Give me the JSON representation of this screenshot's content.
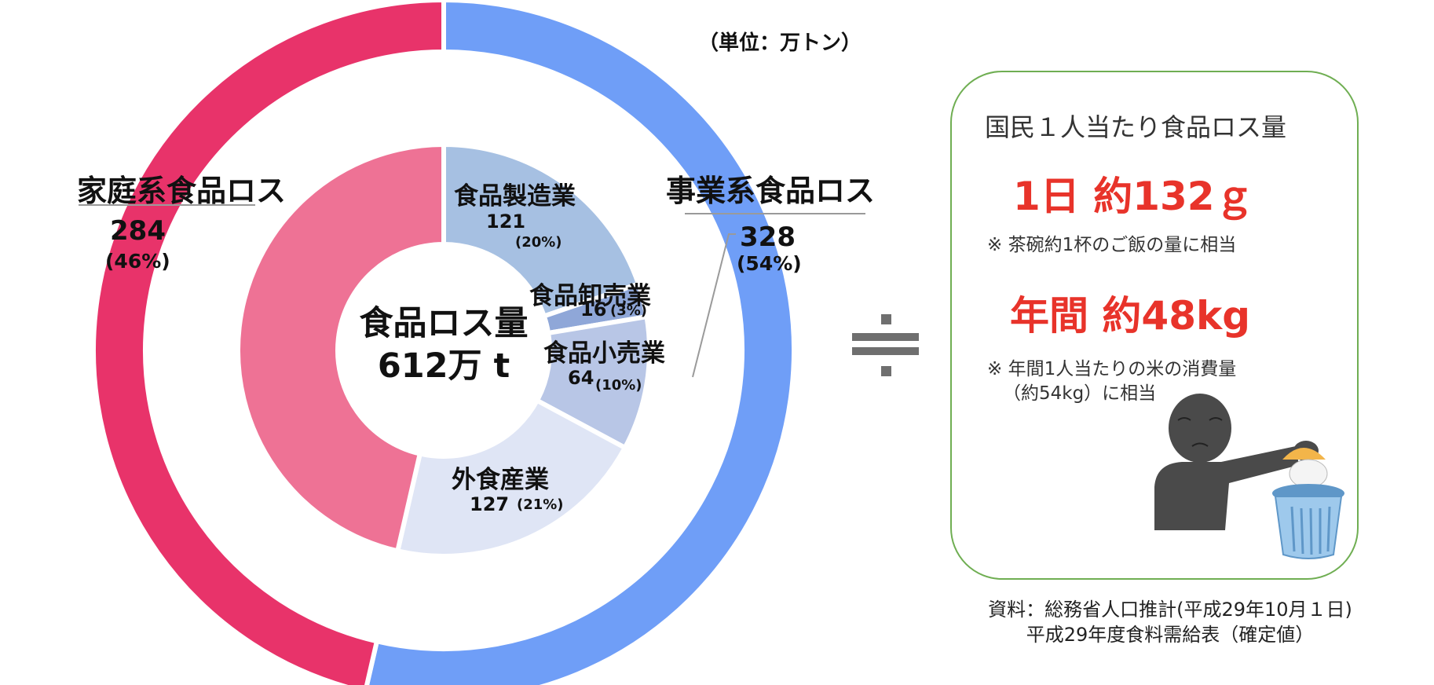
{
  "unit_label": "（単位：万トン）",
  "chart_data": {
    "type": "pie",
    "variant": "nested-donut",
    "total_label": "食品ロス量",
    "total_value": "612万 t",
    "outer_ring": [
      {
        "name": "事業系食品ロス",
        "value": 328,
        "value_label": "328",
        "percent_label": "(54%)",
        "color": "#6f9ef7"
      },
      {
        "name": "家庭系食品ロス",
        "value": 284,
        "value_label": "284",
        "percent_label": "(46%)",
        "color": "#e8336a"
      }
    ],
    "inner_ring": [
      {
        "name": "食品製造業",
        "value": 121,
        "value_label": "121",
        "percent_label": "(20%)",
        "color": "#a6c0e2"
      },
      {
        "name": "食品卸売業",
        "value": 16,
        "value_label": "16",
        "percent_label": "(3%)",
        "color": "#8fa7d8"
      },
      {
        "name": "食品小売業",
        "value": 64,
        "value_label": "64",
        "percent_label": "(10%)",
        "color": "#b8c6e6"
      },
      {
        "name": "外食産業",
        "value": 127,
        "value_label": "127",
        "percent_label": "(21%)",
        "color": "#dfe5f5"
      },
      {
        "name": "",
        "value": 284,
        "value_label": "",
        "percent_label": "",
        "color": "#ee7295"
      }
    ]
  },
  "approx_symbol": "≒",
  "info": {
    "title": "国民１人当たり食品ロス量",
    "daily": "1日 約132ｇ",
    "daily_note": "※ 茶碗約1杯のご飯の量に相当",
    "yearly": "年間 約48kg",
    "yearly_note_1": "※ 年間1人当たりの米の消費量",
    "yearly_note_2": "（約54kg）に相当",
    "illustration": "person-discarding-rice-icon",
    "border_color": "#6fae52",
    "accent_color": "#e8332a"
  },
  "source_line_1": "資料：総務省人口推計(平成29年10月１日)",
  "source_line_2": "平成29年度食料需給表（確定値）"
}
